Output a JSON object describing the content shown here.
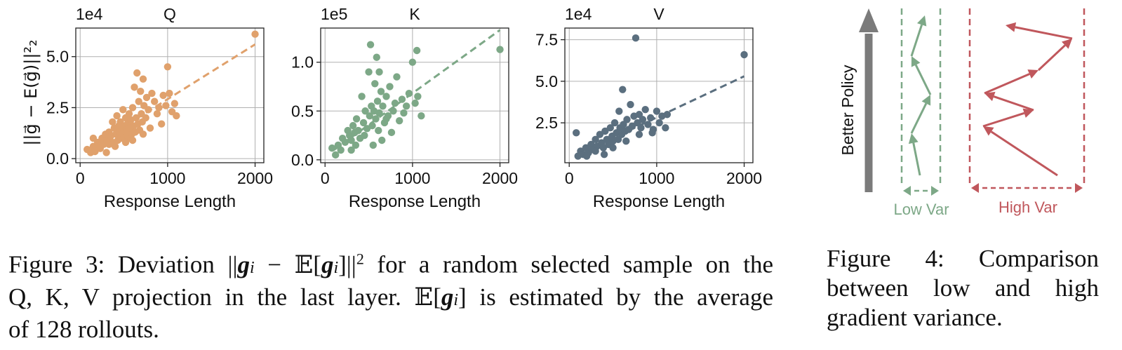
{
  "figure3": {
    "charts": [
      {
        "type": "scatter",
        "title": "Q",
        "xlabel": "Response Length",
        "ylabel": "||g⃗ − E(g⃗)||²₂",
        "multiplier": "1e4",
        "xlim": [
          -50,
          2100
        ],
        "ylim": [
          -0.2,
          6.4
        ],
        "xticks": [
          0,
          1000,
          2000
        ],
        "xtick_labels": [
          "0",
          "1000",
          "2000"
        ],
        "yticks": [
          0,
          2.5,
          5
        ],
        "ytick_labels": [
          "0.0",
          "2.5",
          "5.0"
        ],
        "grid": true,
        "color": "#E0A16C",
        "trend": {
          "x": [
            100,
            2000
          ],
          "y": [
            0.5,
            5.6
          ]
        },
        "points": [
          [
            80,
            0.45
          ],
          [
            120,
            0.3
          ],
          [
            150,
            0.6
          ],
          [
            170,
            0.35
          ],
          [
            200,
            0.8
          ],
          [
            220,
            0.6
          ],
          [
            250,
            1.0
          ],
          [
            270,
            0.7
          ],
          [
            290,
            1.2
          ],
          [
            310,
            0.9
          ],
          [
            330,
            1.3
          ],
          [
            350,
            1.1
          ],
          [
            370,
            0.8
          ],
          [
            390,
            1.5
          ],
          [
            410,
            1.2
          ],
          [
            420,
            2.1
          ],
          [
            430,
            0.9
          ],
          [
            440,
            1.6
          ],
          [
            450,
            1.3
          ],
          [
            460,
            1.8
          ],
          [
            470,
            1.0
          ],
          [
            480,
            1.4
          ],
          [
            490,
            2.4
          ],
          [
            500,
            1.1
          ],
          [
            510,
            1.6
          ],
          [
            520,
            2.0
          ],
          [
            530,
            1.3
          ],
          [
            540,
            1.7
          ],
          [
            550,
            1.0
          ],
          [
            560,
            2.2
          ],
          [
            570,
            1.5
          ],
          [
            580,
            1.9
          ],
          [
            590,
            1.2
          ],
          [
            600,
            2.5
          ],
          [
            610,
            1.6
          ],
          [
            620,
            3.5
          ],
          [
            630,
            1.3
          ],
          [
            640,
            2.0
          ],
          [
            650,
            4.2
          ],
          [
            660,
            1.7
          ],
          [
            670,
            2.8
          ],
          [
            680,
            1.4
          ],
          [
            690,
            3.3
          ],
          [
            700,
            2.2
          ],
          [
            710,
            1.8
          ],
          [
            720,
            3.9
          ],
          [
            730,
            2.6
          ],
          [
            750,
            2.0
          ],
          [
            760,
            3.0
          ],
          [
            780,
            2.4
          ],
          [
            800,
            1.5
          ],
          [
            820,
            3.2
          ],
          [
            850,
            2.8
          ],
          [
            880,
            2.2
          ],
          [
            900,
            2.5
          ],
          [
            930,
            1.7
          ],
          [
            950,
            3.1
          ],
          [
            980,
            2.6
          ],
          [
            1000,
            4.5
          ],
          [
            1020,
            3.2
          ],
          [
            1050,
            2.3
          ],
          [
            1080,
            2.7
          ],
          [
            1100,
            2.1
          ],
          [
            2000,
            6.1
          ],
          [
            150,
            1.0
          ],
          [
            230,
            0.5
          ],
          [
            330,
            0.7
          ],
          [
            370,
            1.8
          ],
          [
            400,
            0.6
          ],
          [
            520,
            0.8
          ],
          [
            600,
            0.9
          ],
          [
            720,
            1.2
          ],
          [
            300,
            0.3
          ]
        ]
      },
      {
        "type": "scatter",
        "title": "K",
        "xlabel": "Response Length",
        "ylabel": "",
        "multiplier": "1e5",
        "xlim": [
          -50,
          2100
        ],
        "ylim": [
          -0.03,
          1.35
        ],
        "xticks": [
          0,
          1000,
          2000
        ],
        "xtick_labels": [
          "0",
          "1000",
          "2000"
        ],
        "yticks": [
          0,
          0.5,
          1
        ],
        "ytick_labels": [
          "0.0",
          "0.5",
          "1.0"
        ],
        "grid": true,
        "color": "#7DA887",
        "trend": {
          "x": [
            100,
            2000
          ],
          "y": [
            0.1,
            1.33
          ]
        },
        "points": [
          [
            80,
            0.12
          ],
          [
            120,
            0.05
          ],
          [
            150,
            0.15
          ],
          [
            180,
            0.1
          ],
          [
            200,
            0.22
          ],
          [
            230,
            0.18
          ],
          [
            260,
            0.3
          ],
          [
            280,
            0.25
          ],
          [
            300,
            0.2
          ],
          [
            320,
            0.35
          ],
          [
            340,
            0.28
          ],
          [
            360,
            0.42
          ],
          [
            380,
            0.3
          ],
          [
            400,
            0.22
          ],
          [
            420,
            0.65
          ],
          [
            440,
            0.38
          ],
          [
            460,
            0.5
          ],
          [
            480,
            0.32
          ],
          [
            500,
            0.9
          ],
          [
            510,
            0.45
          ],
          [
            520,
            1.18
          ],
          [
            530,
            0.55
          ],
          [
            540,
            0.35
          ],
          [
            560,
            0.5
          ],
          [
            570,
            0.78
          ],
          [
            580,
            0.42
          ],
          [
            590,
            1.05
          ],
          [
            600,
            0.6
          ],
          [
            610,
            0.3
          ],
          [
            620,
            0.48
          ],
          [
            640,
            0.7
          ],
          [
            650,
            0.2
          ],
          [
            660,
            0.55
          ],
          [
            680,
            0.38
          ],
          [
            700,
            0.65
          ],
          [
            720,
            0.45
          ],
          [
            740,
            0.75
          ],
          [
            760,
            0.28
          ],
          [
            780,
            0.5
          ],
          [
            800,
            0.58
          ],
          [
            820,
            0.85
          ],
          [
            850,
            0.4
          ],
          [
            880,
            0.62
          ],
          [
            900,
            0.48
          ],
          [
            930,
            0.55
          ],
          [
            960,
            0.68
          ],
          [
            1000,
            1.0
          ],
          [
            1030,
            0.58
          ],
          [
            1060,
            0.65
          ],
          [
            1100,
            0.45
          ],
          [
            1050,
            1.12
          ],
          [
            2000,
            1.13
          ],
          [
            300,
            0.1
          ],
          [
            350,
            0.15
          ],
          [
            450,
            0.25
          ],
          [
            550,
            0.15
          ],
          [
            620,
            0.9
          ],
          [
            700,
            0.42
          ]
        ]
      },
      {
        "type": "scatter",
        "title": "V",
        "xlabel": "Response Length",
        "ylabel": "",
        "multiplier": "1e4",
        "xlim": [
          -50,
          2100
        ],
        "ylim": [
          0.1,
          8.2
        ],
        "xticks": [
          0,
          1000,
          2000
        ],
        "xtick_labels": [
          "0",
          "1000",
          "2000"
        ],
        "yticks": [
          2.5,
          5,
          7.5
        ],
        "ytick_labels": [
          "2.5",
          "5.0",
          "7.5"
        ],
        "grid": true,
        "color": "#5B6F7F",
        "trend": {
          "x": [
            100,
            2000
          ],
          "y": [
            0.6,
            5.3
          ]
        },
        "points": [
          [
            80,
            1.9
          ],
          [
            100,
            0.5
          ],
          [
            130,
            0.8
          ],
          [
            160,
            0.6
          ],
          [
            190,
            1.0
          ],
          [
            220,
            0.7
          ],
          [
            250,
            1.2
          ],
          [
            270,
            0.9
          ],
          [
            300,
            1.5
          ],
          [
            320,
            1.1
          ],
          [
            350,
            1.8
          ],
          [
            370,
            1.3
          ],
          [
            390,
            1.0
          ],
          [
            410,
            2.0
          ],
          [
            430,
            1.5
          ],
          [
            450,
            1.2
          ],
          [
            470,
            2.2
          ],
          [
            490,
            1.7
          ],
          [
            500,
            1.4
          ],
          [
            520,
            2.5
          ],
          [
            540,
            1.9
          ],
          [
            560,
            1.5
          ],
          [
            570,
            3.2
          ],
          [
            580,
            2.2
          ],
          [
            600,
            1.8
          ],
          [
            610,
            4.5
          ],
          [
            620,
            2.4
          ],
          [
            640,
            2.0
          ],
          [
            660,
            2.7
          ],
          [
            680,
            2.1
          ],
          [
            700,
            3.6
          ],
          [
            720,
            2.3
          ],
          [
            740,
            2.9
          ],
          [
            760,
            7.6
          ],
          [
            780,
            2.5
          ],
          [
            800,
            3.0
          ],
          [
            820,
            2.2
          ],
          [
            840,
            2.7
          ],
          [
            870,
            3.3
          ],
          [
            900,
            2.4
          ],
          [
            930,
            2.8
          ],
          [
            960,
            2.1
          ],
          [
            1000,
            3.2
          ],
          [
            1030,
            2.5
          ],
          [
            1060,
            2.9
          ],
          [
            1100,
            2.2
          ],
          [
            1120,
            3.0
          ],
          [
            2000,
            6.6
          ],
          [
            200,
            0.5
          ],
          [
            300,
            0.8
          ],
          [
            400,
            0.6
          ],
          [
            500,
            1.0
          ],
          [
            650,
            1.4
          ],
          [
            800,
            1.8
          ],
          [
            950,
            1.9
          ]
        ]
      }
    ],
    "caption": {
      "line1_a": "Figure 3: Deviation ",
      "line1_b": " for a random selected sample on the",
      "line2_a": "Q, K, V projection in the last layer. ",
      "line2_b": " is estimated by the average",
      "line3": "of 128 rollouts."
    }
  },
  "figure4": {
    "ylabel": "Better Policy",
    "low_label": "Low Var",
    "high_label": "High Var",
    "low_color": "#7DA887",
    "high_color": "#C0575C",
    "arrow_color": "#7B7B7B",
    "caption": {
      "line1": "Figure 4: Comparison",
      "line2": "between low and high",
      "line3": "gradient variance."
    }
  }
}
